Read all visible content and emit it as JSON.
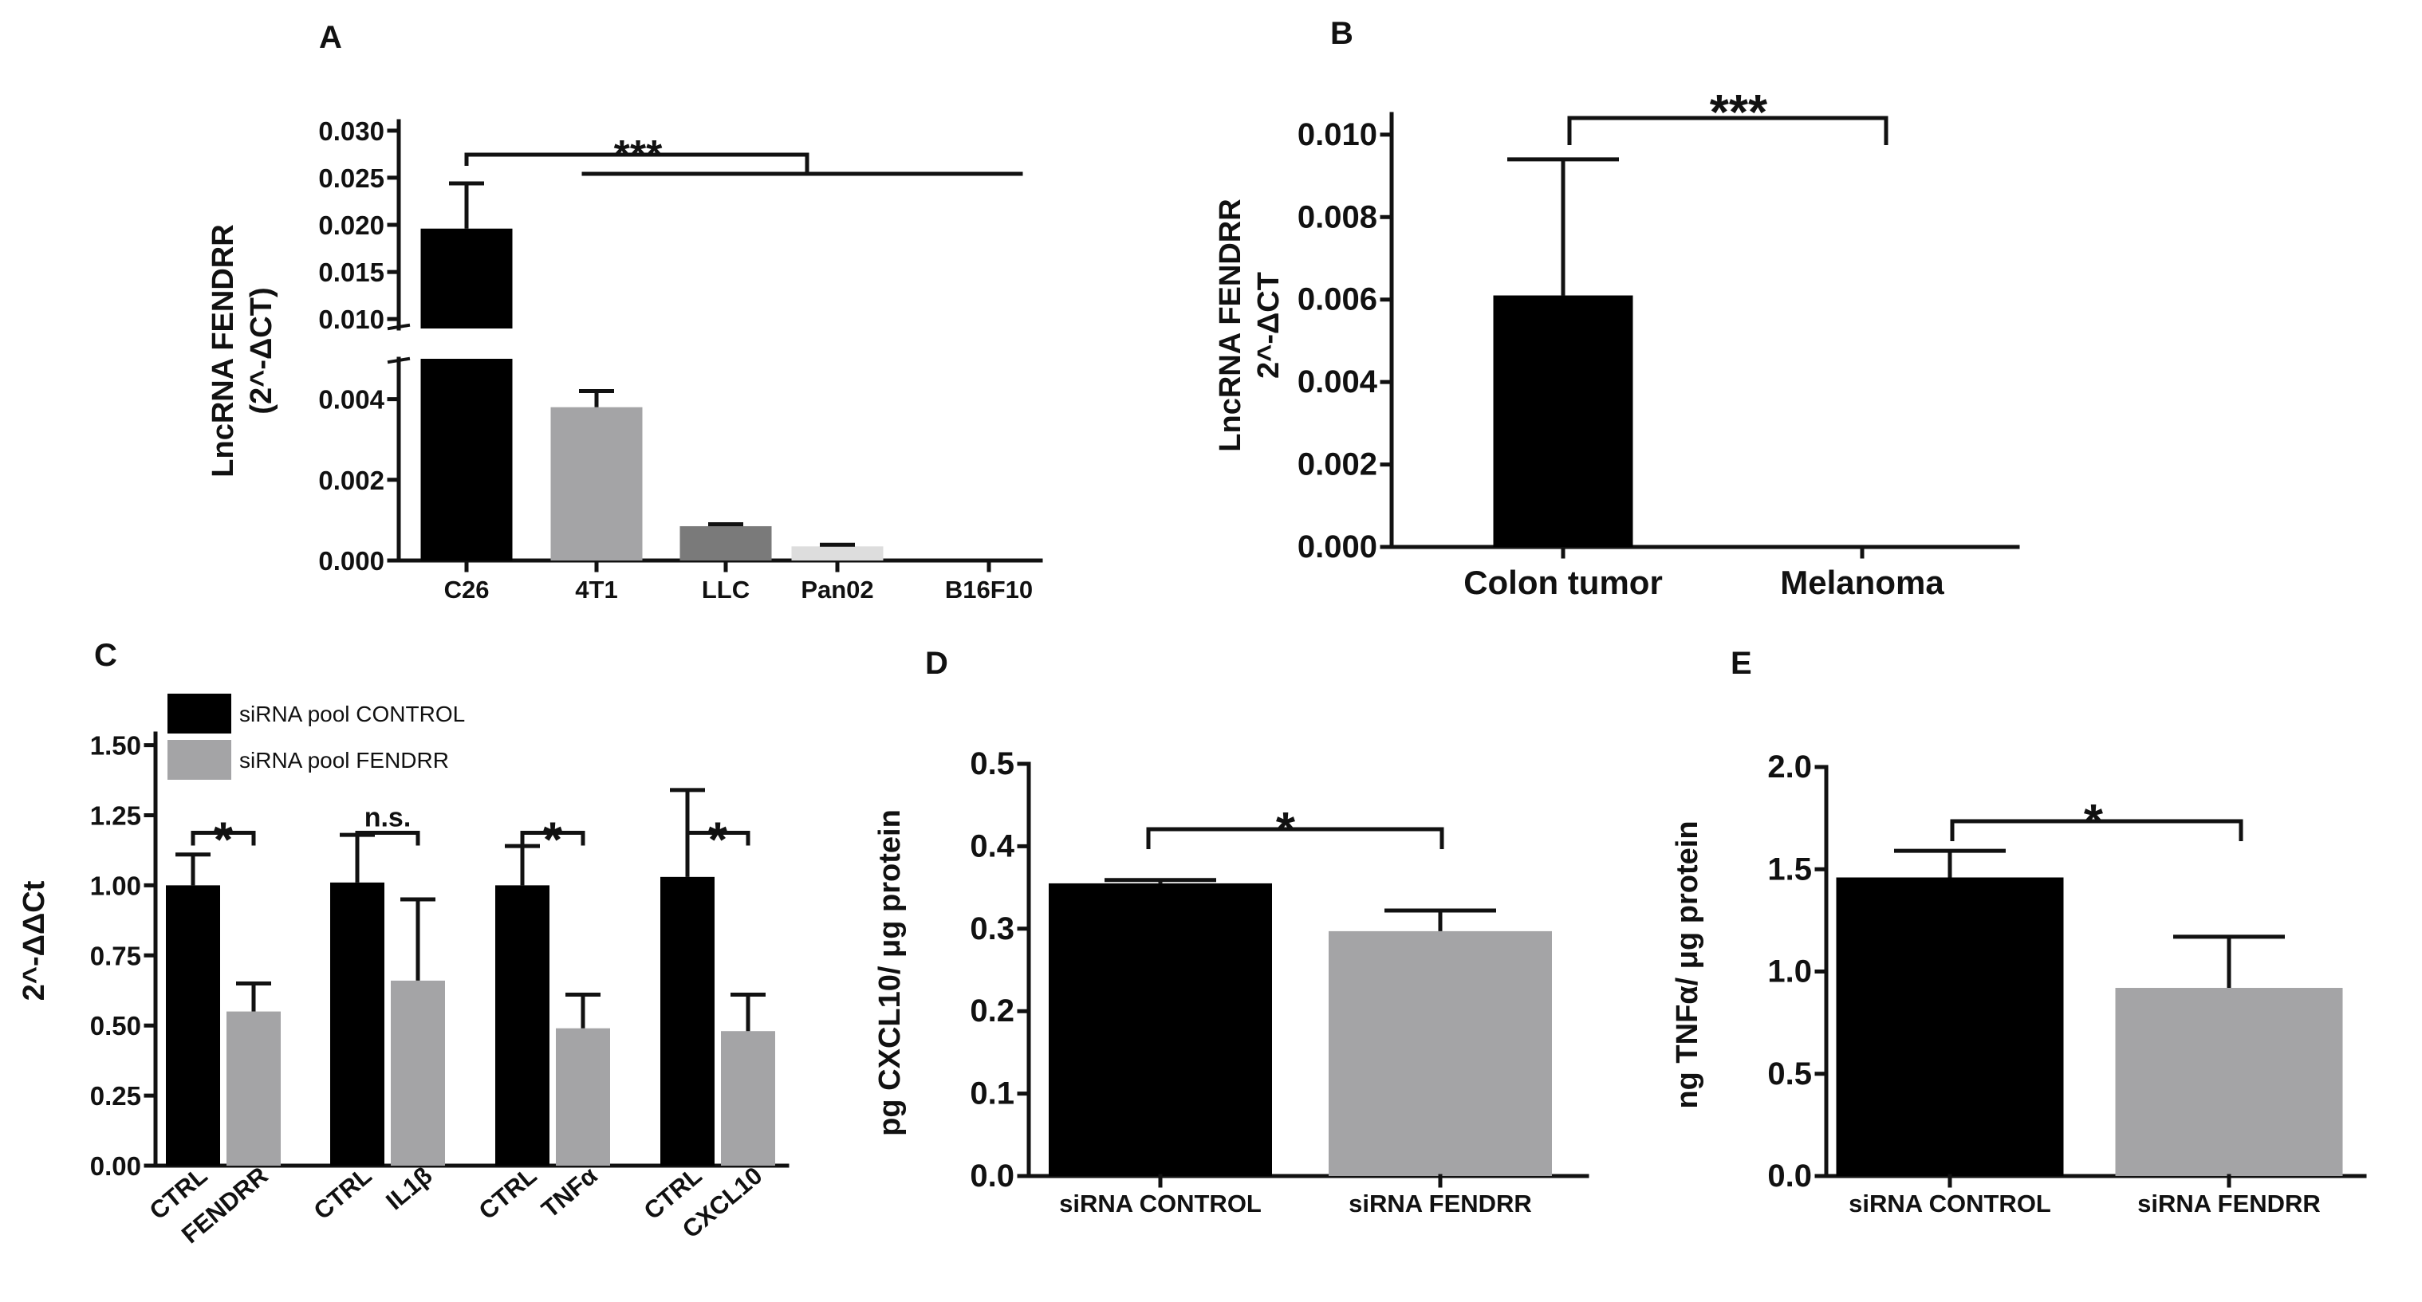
{
  "colors": {
    "black_bar": "#000000",
    "gray_bar": "#a4a4a6",
    "light_gray_bar": "#bcbcbf",
    "dark_gray_bar": "#7a7a7a",
    "pale_gray_bar": "#dddddd",
    "axis": "#111111"
  },
  "chart_data": [
    {
      "id": "A",
      "panel_label": "A",
      "type": "bar",
      "ylabel_lines": [
        "LncRNA FENDRR",
        "(2^-ΔCT)"
      ],
      "categories": [
        "C26",
        "4T1",
        "LLC",
        "Pan02",
        "B16F10"
      ],
      "values": [
        0.0196,
        0.0038,
        0.00085,
        0.00035,
        0.0
      ],
      "errors": [
        0.0048,
        0.0004,
        5e-05,
        4e-05,
        0.0
      ],
      "bar_colors": [
        "#000000",
        "#a4a4a6",
        "#7a7a7a",
        "#dddddd",
        "#ffffff"
      ],
      "y_axis_break": true,
      "lower_segment": {
        "ylim": [
          0,
          0.005
        ],
        "ticks": [
          0.0,
          0.002,
          0.004
        ],
        "tick_labels": [
          "0.000",
          "0.002",
          "0.004"
        ]
      },
      "upper_segment": {
        "ylim": [
          0.009,
          0.031
        ],
        "ticks": [
          0.01,
          0.015,
          0.02,
          0.025,
          0.03
        ],
        "tick_labels": [
          "0.010",
          "0.015",
          "0.020",
          "0.025",
          "0.030"
        ]
      },
      "annotations": [
        {
          "text": "***",
          "compares": [
            "C26",
            "4T1 to B16F10"
          ]
        }
      ]
    },
    {
      "id": "B",
      "panel_label": "B",
      "type": "bar",
      "ylabel_lines": [
        "LncRNA FENDRR",
        "2^-ΔCT"
      ],
      "categories": [
        "Colon tumor",
        "Melanoma"
      ],
      "values": [
        0.0061,
        0.0
      ],
      "errors": [
        0.0033,
        0.0
      ],
      "bar_colors": [
        "#000000",
        "#ffffff"
      ],
      "ylim": [
        0,
        0.0105
      ],
      "ticks": [
        0.0,
        0.002,
        0.004,
        0.006,
        0.008,
        0.01
      ],
      "tick_labels": [
        "0.000",
        "0.002",
        "0.004",
        "0.006",
        "0.008",
        "0.010"
      ],
      "annotations": [
        {
          "text": "***",
          "compares": [
            "Colon tumor",
            "Melanoma"
          ]
        }
      ]
    },
    {
      "id": "C",
      "panel_label": "C",
      "type": "bar",
      "ylabel": "2^-ΔΔCt",
      "legend": [
        {
          "label": "siRNA pool CONTROL",
          "color": "#000000"
        },
        {
          "label": "siRNA pool FENDRR",
          "color": "#a4a4a6"
        }
      ],
      "groups": [
        {
          "labels": [
            "CTRL",
            "FENDRR"
          ],
          "values": [
            1.0,
            0.55
          ],
          "errors": [
            0.11,
            0.1
          ],
          "sig": "*"
        },
        {
          "labels": [
            "CTRL",
            "IL1β"
          ],
          "values": [
            1.01,
            0.66
          ],
          "errors": [
            0.17,
            0.29
          ],
          "sig": "n.s."
        },
        {
          "labels": [
            "CTRL",
            "TNFα"
          ],
          "values": [
            1.0,
            0.49
          ],
          "errors": [
            0.14,
            0.12
          ],
          "sig": "*"
        },
        {
          "labels": [
            "CTRL",
            "CXCL10"
          ],
          "values": [
            1.03,
            0.48
          ],
          "errors": [
            0.31,
            0.13
          ],
          "sig": "*"
        }
      ],
      "ylim": [
        0,
        1.55
      ],
      "ticks": [
        0,
        0.25,
        0.5,
        0.75,
        1.0,
        1.25,
        1.5
      ],
      "tick_labels": [
        "0.00",
        "0.25",
        "0.50",
        "0.75",
        "1.00",
        "1.25",
        "1.50"
      ]
    },
    {
      "id": "D",
      "panel_label": "D",
      "type": "bar",
      "ylabel": "pg CXCL10/ μg protein",
      "categories": [
        "siRNA CONTROL",
        "siRNA FENDRR"
      ],
      "values": [
        0.355,
        0.297
      ],
      "errors": [
        0.004,
        0.025
      ],
      "bar_colors": [
        "#000000",
        "#a4a4a6"
      ],
      "ylim": [
        0,
        0.5
      ],
      "ticks": [
        0,
        0.1,
        0.2,
        0.3,
        0.4,
        0.5
      ],
      "tick_labels": [
        "0.0",
        "0.1",
        "0.2",
        "0.3",
        "0.4",
        "0.5"
      ],
      "annotations": [
        {
          "text": "*",
          "compares": [
            "siRNA CONTROL",
            "siRNA FENDRR"
          ]
        }
      ]
    },
    {
      "id": "E",
      "panel_label": "E",
      "type": "bar",
      "ylabel": "ng TNFα/ μg protein",
      "categories": [
        "siRNA CONTROL",
        "siRNA FENDRR"
      ],
      "values": [
        1.46,
        0.92
      ],
      "errors": [
        0.13,
        0.25
      ],
      "bar_colors": [
        "#000000",
        "#a4a4a6"
      ],
      "ylim": [
        0,
        2.0
      ],
      "ticks": [
        0,
        0.5,
        1.0,
        1.5,
        2.0
      ],
      "tick_labels": [
        "0.0",
        "0.5",
        "1.0",
        "1.5",
        "2.0"
      ],
      "annotations": [
        {
          "text": "*",
          "compares": [
            "siRNA CONTROL",
            "siRNA FENDRR"
          ]
        }
      ]
    }
  ]
}
